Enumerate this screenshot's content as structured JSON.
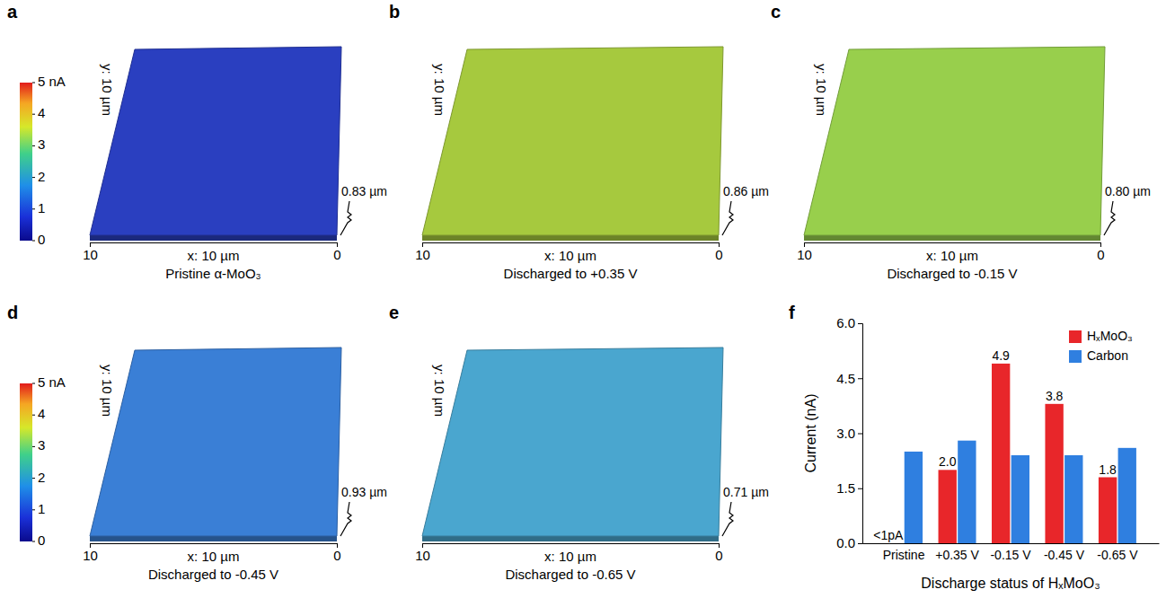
{
  "chart_data": [
    {
      "type": "surface",
      "panel_label": "a",
      "caption": "Pristine α-MoO₃",
      "xlabel": "x: 10 µm",
      "ylabel": "y: 10 µm",
      "xlim": [
        10,
        0
      ],
      "xticks": [
        10,
        0
      ],
      "zlabel": "0.83 µm",
      "color": "#2a3fc0",
      "colorbar_range": [
        0,
        5
      ],
      "colorbar_ticks": [
        0,
        1,
        2,
        3,
        4,
        {
          "value": 5,
          "label": "5 nA"
        }
      ]
    },
    {
      "type": "surface",
      "panel_label": "b",
      "caption": "Discharged to +0.35 V",
      "xlabel": "x: 10 µm",
      "ylabel": "y: 10 µm",
      "xlim": [
        10,
        0
      ],
      "xticks": [
        10,
        0
      ],
      "zlabel": "0.86 µm",
      "color": "#a6c93e"
    },
    {
      "type": "surface",
      "panel_label": "c",
      "caption": "Discharged to -0.15 V",
      "xlabel": "x: 10 µm",
      "ylabel": "y: 10 µm",
      "xlim": [
        10,
        0
      ],
      "xticks": [
        10,
        0
      ],
      "zlabel": "0.80 µm",
      "color": "#98cf4c"
    },
    {
      "type": "surface",
      "panel_label": "d",
      "caption": "Discharged to -0.45 V",
      "xlabel": "x: 10 µm",
      "ylabel": "y: 10 µm",
      "xlim": [
        10,
        0
      ],
      "xticks": [
        10,
        0
      ],
      "zlabel": "0.93 µm",
      "color": "#3a7fd6",
      "colorbar_range": [
        0,
        5
      ],
      "colorbar_ticks": [
        0,
        1,
        2,
        3,
        4,
        {
          "value": 5,
          "label": "5 nA"
        }
      ]
    },
    {
      "type": "surface",
      "panel_label": "e",
      "caption": "Discharged to -0.65 V",
      "xlabel": "x: 10 µm",
      "ylabel": "y: 10 µm",
      "xlim": [
        10,
        0
      ],
      "xticks": [
        10,
        0
      ],
      "zlabel": "0.71 µm",
      "color": "#4aa6cf"
    },
    {
      "type": "bar",
      "panel_label": "f",
      "categories": [
        "Pristine",
        "+0.35 V",
        "-0.15 V",
        "-0.45 V",
        "-0.65 V"
      ],
      "series": [
        {
          "name": "HₓMoO₃",
          "color": "#e8262a",
          "values": [
            0,
            2.0,
            4.9,
            3.8,
            1.8
          ],
          "value_labels": [
            "<1pA",
            "2.0",
            "4.9",
            "3.8",
            "1.8"
          ],
          "data_labels": true
        },
        {
          "name": "Carbon",
          "color": "#2f7fe0",
          "values": [
            2.5,
            2.8,
            2.4,
            2.4,
            2.6
          ]
        }
      ],
      "ylabel": "Current (nA)",
      "xlabel": "Discharge status of HₓMoO₃",
      "ylim": [
        0,
        6
      ],
      "yticks": [
        {
          "value": 0,
          "label": "0.0"
        },
        1.5,
        {
          "value": 3,
          "label": "3.0"
        },
        4.5,
        {
          "value": 6,
          "label": "6.0"
        }
      ],
      "legend": "top-right"
    }
  ]
}
